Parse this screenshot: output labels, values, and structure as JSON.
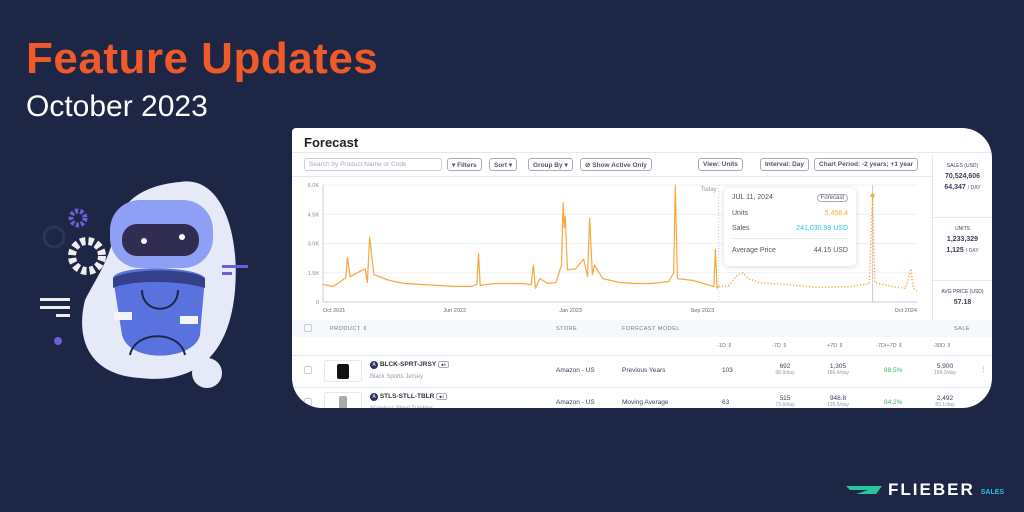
{
  "banner": {
    "title": "Feature Updates",
    "subtitle": "October 2023"
  },
  "colors": {
    "background": "#1e2646",
    "accent": "#f05a28",
    "series": "#f7a83c",
    "sales": "#2bc4e4",
    "positive": "#3bb36b"
  },
  "app": {
    "title": "Forecast",
    "search_placeholder": "Search by Product Name or Code",
    "toolbar": {
      "filters": "Filters",
      "sort": "Sort",
      "group_by": "Group By",
      "show_active": "Show Active Only",
      "view": "View: Units",
      "interval": "Interval: Day",
      "period": "Chart Period: -2 years; +1 year"
    },
    "summary": [
      {
        "label": "SALES (USD)",
        "value": "70,524,606",
        "per_day": "64,347",
        "unit": "/ DAY"
      },
      {
        "label": "UNITS",
        "value": "1,233,329",
        "per_day": "1,125",
        "unit": "/ DAY"
      },
      {
        "label": "AVG PRICE (USD)",
        "value": "57.18"
      }
    ],
    "tooltip": {
      "date": "JUL 11, 2024",
      "badge": "Forecast",
      "units_label": "Units",
      "units": "5,458.4",
      "sales_label": "Sales",
      "sales": "241,030.99 USD",
      "avg_label": "Average Price",
      "avg": "44.15 USD"
    },
    "table": {
      "headers": {
        "product": "PRODUCT ⇕",
        "store": "STORE",
        "model": "FORECAST MODEL",
        "sales": "SALE"
      },
      "subheaders": [
        "-1D ⇕",
        "-7D ⇕",
        "+7D ⇕",
        "-7D/+7D ⇕",
        "-30D ⇕"
      ],
      "rows": [
        {
          "sku": "BLCK-SPRT-JRSY",
          "tag": "5",
          "name": "Black Sports Jersey",
          "store": "Amazon - US",
          "model": "Previous Years",
          "d1": "103",
          "d7": "692",
          "d7r": "98.9/day",
          "p7": "1,305",
          "p7r": "186.4/day",
          "ratio": "88.5%",
          "d30": "5,900",
          "d30r": "199.3/day"
        },
        {
          "sku": "STLS-STLL-TBLR",
          "tag": "2",
          "name": "Stainless Steel Tumbler",
          "store": "Amazon - US",
          "model": "Moving Average",
          "d1": "63",
          "d7": "515",
          "d7r": "73.6/day",
          "p7": "948.8",
          "p7r": "135.5/day",
          "ratio": "84.2%",
          "d30": "2,492",
          "d30r": "83.1/day"
        }
      ]
    }
  },
  "chart_data": {
    "type": "line",
    "ylim": [
      0,
      6000
    ],
    "yticks": [
      "0",
      "1.5K",
      "3.0K",
      "4.5K",
      "6.0K"
    ],
    "ytick_values": [
      0,
      1500,
      3000,
      4500,
      6000
    ],
    "xticks": [
      "Oct 2021",
      "Jun 2022",
      "Jan 2023",
      "Sep 2023",
      "Oct 2024"
    ],
    "xtick_dates": [
      "2021-10-01",
      "2022-06-01",
      "2023-01-01",
      "2023-09-01",
      "2024-10-01"
    ],
    "xlim": [
      "2021-10-01",
      "2024-10-01"
    ],
    "today_label": "Today",
    "today": "2023-10-01",
    "grid": true,
    "series": [
      {
        "style": "solid",
        "points": [
          [
            "2021-10-01",
            900
          ],
          [
            "2021-10-20",
            800
          ],
          [
            "2021-11-05",
            1100
          ],
          [
            "2021-11-12",
            1250
          ],
          [
            "2021-11-15",
            2300
          ],
          [
            "2021-11-20",
            1300
          ],
          [
            "2021-12-10",
            1600
          ],
          [
            "2021-12-18",
            1700
          ],
          [
            "2021-12-22",
            1000
          ],
          [
            "2021-12-26",
            3300
          ],
          [
            "2022-01-03",
            1400
          ],
          [
            "2022-02-01",
            1100
          ],
          [
            "2022-03-01",
            950
          ],
          [
            "2022-04-01",
            900
          ],
          [
            "2022-05-01",
            850
          ],
          [
            "2022-06-01",
            800
          ],
          [
            "2022-07-01",
            800
          ],
          [
            "2022-07-12",
            900
          ],
          [
            "2022-07-15",
            2500
          ],
          [
            "2022-07-18",
            850
          ],
          [
            "2022-08-15",
            950
          ],
          [
            "2022-10-01",
            950
          ],
          [
            "2022-10-20",
            900
          ],
          [
            "2022-10-24",
            1900
          ],
          [
            "2022-10-28",
            700
          ],
          [
            "2022-11-05",
            1200
          ],
          [
            "2022-11-20",
            950
          ],
          [
            "2022-12-05",
            1000
          ],
          [
            "2022-12-15",
            1900
          ],
          [
            "2022-12-18",
            5100
          ],
          [
            "2022-12-20",
            3800
          ],
          [
            "2022-12-22",
            4400
          ],
          [
            "2022-12-26",
            1650
          ],
          [
            "2023-01-10",
            1700
          ],
          [
            "2023-01-25",
            2200
          ],
          [
            "2023-02-01",
            1300
          ],
          [
            "2023-02-05",
            4300
          ],
          [
            "2023-02-10",
            1400
          ],
          [
            "2023-02-14",
            1900
          ],
          [
            "2023-03-01",
            1200
          ],
          [
            "2023-04-01",
            1000
          ],
          [
            "2023-05-01",
            950
          ],
          [
            "2023-06-01",
            950
          ],
          [
            "2023-07-01",
            1050
          ],
          [
            "2023-07-10",
            1500
          ],
          [
            "2023-07-13",
            6000
          ],
          [
            "2023-07-17",
            1200
          ],
          [
            "2023-08-15",
            1100
          ],
          [
            "2023-09-10",
            900
          ],
          [
            "2023-09-22",
            800
          ],
          [
            "2023-09-25",
            2700
          ],
          [
            "2023-09-28",
            700
          ],
          [
            "2023-10-01",
            800
          ]
        ]
      },
      {
        "style": "dotted",
        "points": [
          [
            "2023-10-01",
            800
          ],
          [
            "2023-10-20",
            850
          ],
          [
            "2023-11-05",
            1400
          ],
          [
            "2023-11-15",
            1500
          ],
          [
            "2023-11-25",
            1200
          ],
          [
            "2023-12-15",
            1000
          ],
          [
            "2024-02-01",
            900
          ],
          [
            "2024-04-01",
            750
          ],
          [
            "2024-06-01",
            800
          ],
          [
            "2024-07-05",
            950
          ],
          [
            "2024-07-11",
            5458.4
          ],
          [
            "2024-07-15",
            1000
          ],
          [
            "2024-08-15",
            800
          ],
          [
            "2024-09-10",
            700
          ],
          [
            "2024-09-20",
            1700
          ],
          [
            "2024-09-24",
            700
          ],
          [
            "2024-10-01",
            600
          ]
        ]
      }
    ]
  }
}
